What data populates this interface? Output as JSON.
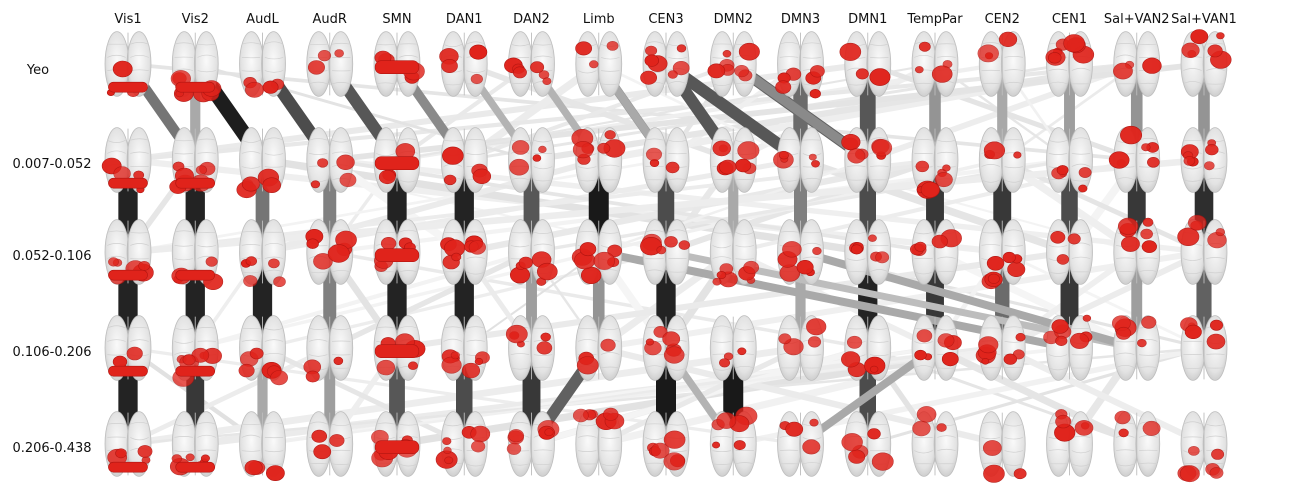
{
  "columns": [
    "Vis1",
    "Vis2",
    "AudL",
    "AudR",
    "SMN",
    "DAN1",
    "DAN2",
    "Limb",
    "CEN3",
    "DMN2",
    "DMN3",
    "DMN1",
    "TempPar",
    "CEN2",
    "CEN1",
    "Sal+VAN2",
    "Sal+VAN1"
  ],
  "rows": [
    "Yeo",
    "0.007-0.052",
    "0.052-0.106",
    "0.106-0.206",
    "0.206-0.438"
  ],
  "colors": {
    "activation": "#e0231b",
    "activation_dark": "#b01410",
    "brain_fill": "#e6e6e6",
    "brain_edge": "#bdbdbd",
    "link_strong": "#1e1e1e",
    "link_light": "#d9d9d9"
  },
  "strong_links": [
    {
      "from": [
        0,
        0
      ],
      "to": [
        1,
        0
      ],
      "shade": 0.55
    },
    {
      "from": [
        1,
        0
      ],
      "to": [
        2,
        0
      ],
      "shade": 0.98
    },
    {
      "from": [
        2,
        0
      ],
      "to": [
        3,
        0
      ],
      "shade": 0.75
    },
    {
      "from": [
        3,
        0
      ],
      "to": [
        4,
        0
      ],
      "shade": 0.7
    },
    {
      "from": [
        4,
        0
      ],
      "to": [
        5,
        0
      ],
      "shade": 0.45
    },
    {
      "from": [
        5,
        0
      ],
      "to": [
        6,
        0
      ],
      "shade": 0.25
    },
    {
      "from": [
        6,
        0
      ],
      "to": [
        7,
        0
      ],
      "shade": 0.25
    },
    {
      "from": [
        7,
        0
      ],
      "to": [
        8,
        0
      ],
      "shade": 0.4
    },
    {
      "from": [
        8,
        0
      ],
      "to": [
        9,
        0
      ],
      "shade": 0.7
    },
    {
      "from": [
        9,
        0
      ],
      "to": [
        11,
        0
      ],
      "shade": 0.65
    },
    {
      "from": [
        10,
        0
      ],
      "to": [
        10,
        0
      ],
      "shade": 0.6
    },
    {
      "from": [
        11,
        0
      ],
      "to": [
        11,
        0
      ],
      "shade": 0.7
    },
    {
      "from": [
        12,
        0
      ],
      "to": [
        12,
        0
      ],
      "shade": 0.4
    },
    {
      "from": [
        13,
        0
      ],
      "to": [
        13,
        0
      ],
      "shade": 0.3
    },
    {
      "from": [
        14,
        0
      ],
      "to": [
        14,
        0
      ],
      "shade": 0.35
    },
    {
      "from": [
        15,
        0
      ],
      "to": [
        15,
        0
      ],
      "shade": 0.4
    },
    {
      "from": [
        16,
        0
      ],
      "to": [
        16,
        0
      ],
      "shade": 0.4
    },
    {
      "from": [
        0,
        1
      ],
      "to": [
        0,
        2
      ],
      "shade": 0.95
    },
    {
      "from": [
        1,
        1
      ],
      "to": [
        1,
        2
      ],
      "shade": 0.95
    },
    {
      "from": [
        2,
        1
      ],
      "to": [
        2,
        2
      ],
      "shade": 0.55
    },
    {
      "from": [
        3,
        1
      ],
      "to": [
        3,
        2
      ],
      "shade": 0.5
    },
    {
      "from": [
        4,
        1
      ],
      "to": [
        4,
        2
      ],
      "shade": 0.95
    },
    {
      "from": [
        5,
        1
      ],
      "to": [
        5,
        2
      ],
      "shade": 0.95
    },
    {
      "from": [
        6,
        1
      ],
      "to": [
        6,
        2
      ],
      "shade": 0.7
    },
    {
      "from": [
        7,
        1
      ],
      "to": [
        7,
        2
      ],
      "shade": 1.0
    },
    {
      "from": [
        8,
        1
      ],
      "to": [
        8,
        2
      ],
      "shade": 0.75
    },
    {
      "from": [
        9,
        1
      ],
      "to": [
        9,
        2
      ],
      "shade": 0.3
    },
    {
      "from": [
        10,
        1
      ],
      "to": [
        10,
        2
      ],
      "shade": 0.5
    },
    {
      "from": [
        11,
        1
      ],
      "to": [
        11,
        2
      ],
      "shade": 0.75
    },
    {
      "from": [
        12,
        1
      ],
      "to": [
        12,
        2
      ],
      "shade": 0.85
    },
    {
      "from": [
        13,
        1
      ],
      "to": [
        13,
        2
      ],
      "shade": 0.85
    },
    {
      "from": [
        14,
        1
      ],
      "to": [
        14,
        2
      ],
      "shade": 0.75
    },
    {
      "from": [
        15,
        1
      ],
      "to": [
        15,
        2
      ],
      "shade": 0.85
    },
    {
      "from": [
        16,
        1
      ],
      "to": [
        16,
        2
      ],
      "shade": 0.9
    },
    {
      "from": [
        0,
        2
      ],
      "to": [
        0,
        3
      ],
      "shade": 0.95
    },
    {
      "from": [
        1,
        2
      ],
      "to": [
        1,
        3
      ],
      "shade": 0.95
    },
    {
      "from": [
        2,
        2
      ],
      "to": [
        2,
        3
      ],
      "shade": 0.95
    },
    {
      "from": [
        3,
        2
      ],
      "to": [
        3,
        3
      ],
      "shade": 0.5
    },
    {
      "from": [
        4,
        2
      ],
      "to": [
        4,
        3
      ],
      "shade": 0.95
    },
    {
      "from": [
        5,
        2
      ],
      "to": [
        5,
        3
      ],
      "shade": 0.95
    },
    {
      "from": [
        6,
        2
      ],
      "to": [
        6,
        3
      ],
      "shade": 0.35
    },
    {
      "from": [
        7,
        2
      ],
      "to": [
        7,
        3
      ],
      "shade": 0.4
    },
    {
      "from": [
        8,
        2
      ],
      "to": [
        8,
        3
      ],
      "shade": 0.95
    },
    {
      "from": [
        10,
        2
      ],
      "to": [
        10,
        3
      ],
      "shade": 0.3
    },
    {
      "from": [
        11,
        2
      ],
      "to": [
        11,
        3
      ],
      "shade": 0.95
    },
    {
      "from": [
        12,
        2
      ],
      "to": [
        12,
        3
      ],
      "shade": 0.85
    },
    {
      "from": [
        13,
        2
      ],
      "to": [
        13,
        3
      ],
      "shade": 0.6
    },
    {
      "from": [
        14,
        2
      ],
      "to": [
        14,
        3
      ],
      "shade": 0.85
    },
    {
      "from": [
        15,
        2
      ],
      "to": [
        15,
        3
      ],
      "shade": 0.35
    },
    {
      "from": [
        16,
        2
      ],
      "to": [
        16,
        3
      ],
      "shade": 0.65
    },
    {
      "from": [
        0,
        3
      ],
      "to": [
        0,
        4
      ],
      "shade": 0.95
    },
    {
      "from": [
        1,
        3
      ],
      "to": [
        1,
        4
      ],
      "shade": 0.85
    },
    {
      "from": [
        2,
        3
      ],
      "to": [
        2,
        4
      ],
      "shade": 0.3
    },
    {
      "from": [
        3,
        3
      ],
      "to": [
        3,
        4
      ],
      "shade": 0.35
    },
    {
      "from": [
        4,
        3
      ],
      "to": [
        4,
        4
      ],
      "shade": 0.7
    },
    {
      "from": [
        5,
        3
      ],
      "to": [
        5,
        4
      ],
      "shade": 0.75
    },
    {
      "from": [
        6,
        3
      ],
      "to": [
        6,
        4
      ],
      "shade": 0.85
    },
    {
      "from": [
        8,
        3
      ],
      "to": [
        8,
        4
      ],
      "shade": 1.0
    },
    {
      "from": [
        9,
        3
      ],
      "to": [
        9,
        4
      ],
      "shade": 1.0
    },
    {
      "from": [
        11,
        3
      ],
      "to": [
        11,
        4
      ],
      "shade": 0.75
    },
    {
      "from": [
        7,
        3
      ],
      "to": [
        6,
        4
      ],
      "shade": 0.65
    },
    {
      "from": [
        8,
        3
      ],
      "to": [
        9,
        4
      ],
      "shade": 0.25
    },
    {
      "from": [
        7,
        0
      ],
      "to": [
        8,
        1
      ],
      "shade": 0.3
    },
    {
      "from": [
        8,
        0
      ],
      "to": [
        10,
        1
      ],
      "shade": 0.7
    },
    {
      "from": [
        9,
        0
      ],
      "to": [
        11,
        1
      ],
      "shade": 0.45
    },
    {
      "from": [
        1,
        0
      ],
      "to": [
        1,
        1
      ],
      "shade": 0.3
    },
    {
      "from": [
        7,
        2
      ],
      "to": [
        14,
        3
      ],
      "shade": 0.3
    },
    {
      "from": [
        8,
        2
      ],
      "to": [
        15,
        3
      ],
      "shade": 0.2
    },
    {
      "from": [
        10,
        2
      ],
      "to": [
        15,
        3
      ],
      "shade": 0.3
    },
    {
      "from": [
        12,
        3
      ],
      "to": [
        10,
        4
      ],
      "shade": 0.3
    }
  ]
}
